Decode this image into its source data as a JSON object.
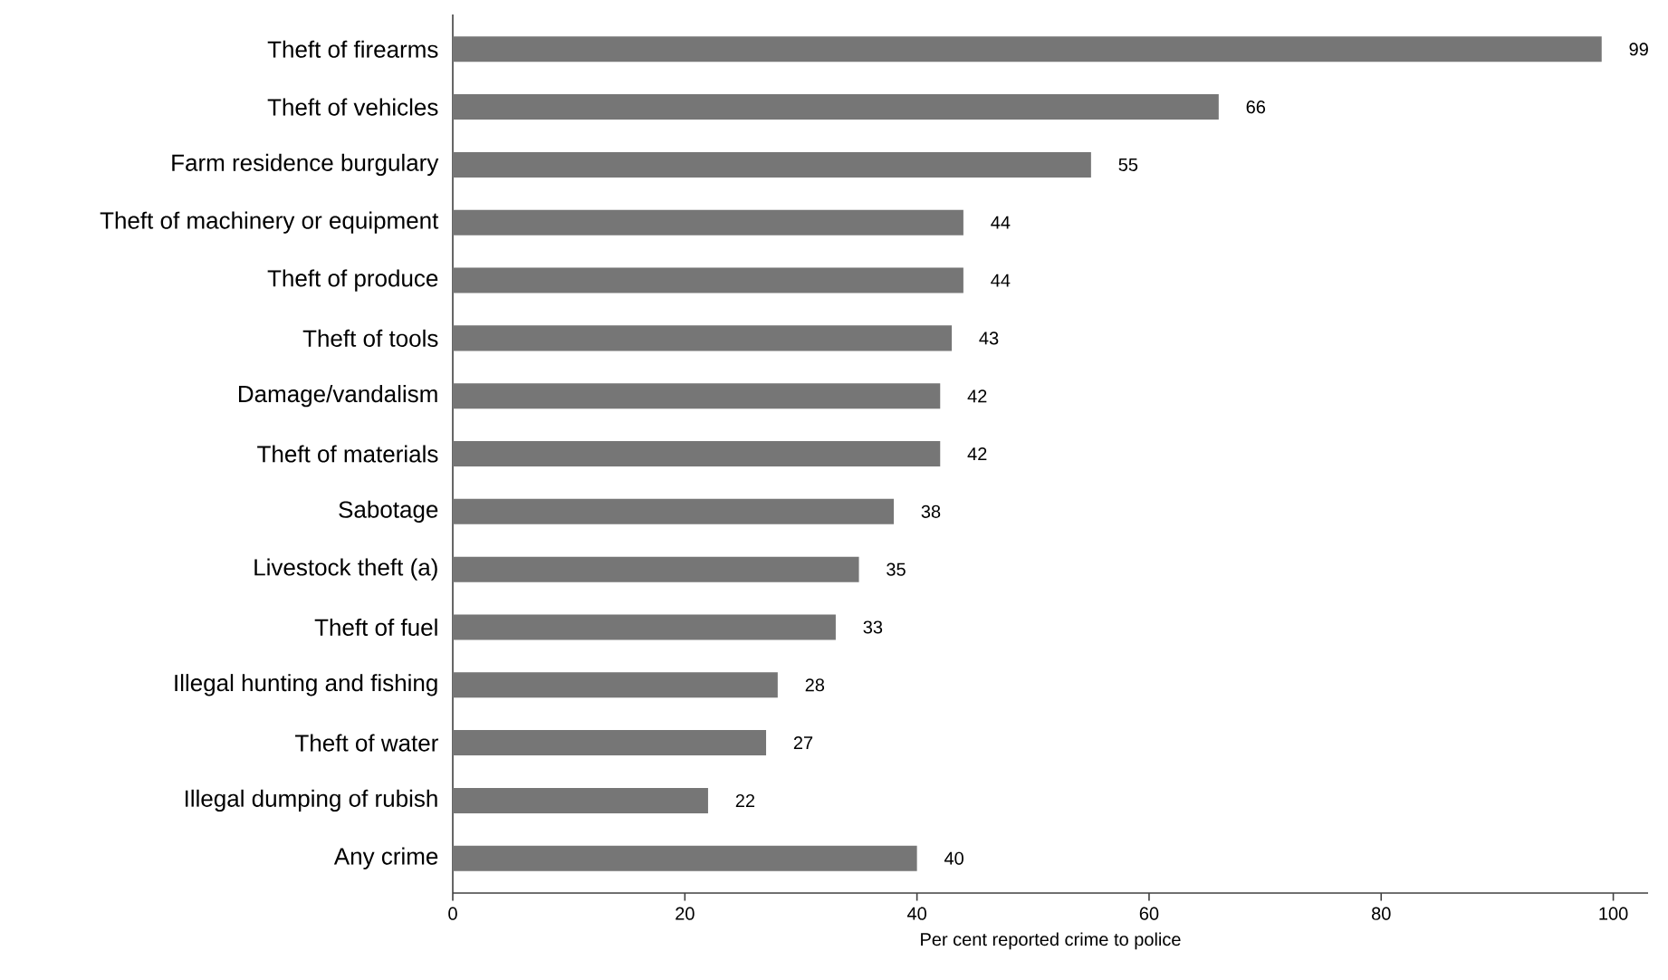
{
  "chart_data": {
    "type": "bar",
    "orientation": "horizontal",
    "xlabel": "Per cent reported crime to police",
    "categories": [
      "Theft of firearms",
      "Theft of vehicles",
      "Farm residence burgulary",
      "Theft of machinery or equipment",
      "Theft of produce",
      "Theft of tools",
      "Damage/vandalism",
      "Theft of materials",
      "Sabotage",
      "Livestock theft (a)",
      "Theft of fuel",
      "Illegal hunting and fishing",
      "Theft of water",
      "Illegal dumping of rubish",
      "Any crime"
    ],
    "values": [
      99,
      66,
      55,
      44,
      44,
      43,
      42,
      42,
      38,
      35,
      33,
      28,
      27,
      22,
      40
    ],
    "color": "#767676",
    "data_labels": true,
    "xlim": [
      0,
      103
    ],
    "xticks": [
      0,
      20,
      40,
      60,
      80,
      100
    ]
  }
}
